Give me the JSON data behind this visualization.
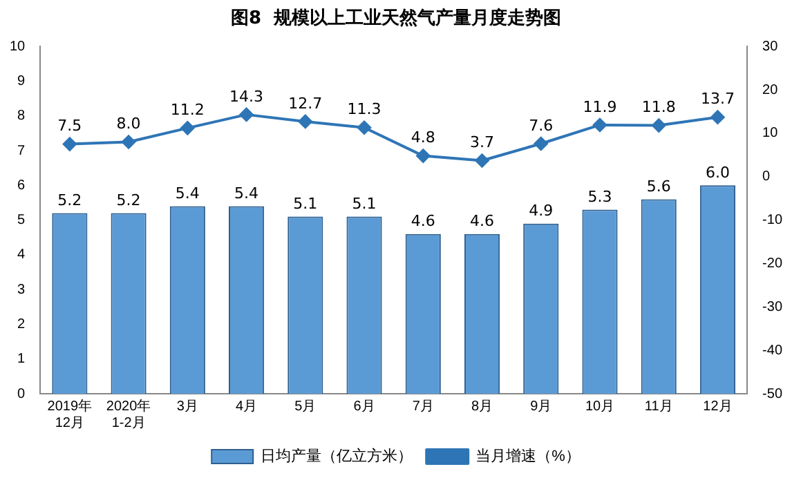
{
  "chart_data": {
    "type": "bar",
    "title": "图8  规模以上工业天然气产量月度走势图",
    "categories": [
      "2019年\n12月",
      "2020年\n1-2月",
      "3月",
      "4月",
      "5月",
      "6月",
      "7月",
      "8月",
      "9月",
      "10月",
      "11月",
      "12月"
    ],
    "series": [
      {
        "name": "日均产量（亿立方米）",
        "color": "#5b9bd5",
        "values": [
          5.2,
          5.2,
          5.4,
          5.4,
          5.1,
          5.1,
          4.6,
          4.6,
          4.9,
          5.3,
          5.6,
          6.0
        ],
        "value_labels": [
          "5.2",
          "5.2",
          "5.4",
          "5.4",
          "5.1",
          "5.1",
          "4.6",
          "4.6",
          "4.9",
          "5.3",
          "5.6",
          "6.0"
        ]
      },
      {
        "name": "当月增速（%）",
        "type": "line",
        "axis": "y2",
        "color": "#2e75b6",
        "marker": "diamond",
        "values": [
          7.5,
          8.0,
          11.2,
          14.3,
          12.7,
          11.3,
          4.8,
          3.7,
          7.6,
          11.9,
          11.8,
          13.7
        ],
        "value_labels": [
          "7.5",
          "8.0",
          "11.2",
          "14.3",
          "12.7",
          "11.3",
          "4.8",
          "3.7",
          "7.6",
          "11.9",
          "11.8",
          "13.7"
        ]
      }
    ],
    "ylim": [
      0,
      10
    ],
    "yticks": [
      0,
      1,
      2,
      3,
      4,
      5,
      6,
      7,
      8,
      9,
      10
    ],
    "y2lim": [
      -50,
      30
    ],
    "y2ticks": [
      -50,
      -40,
      -30,
      -20,
      -10,
      0,
      10,
      20,
      30
    ],
    "grid": false,
    "legend": "bottom"
  }
}
